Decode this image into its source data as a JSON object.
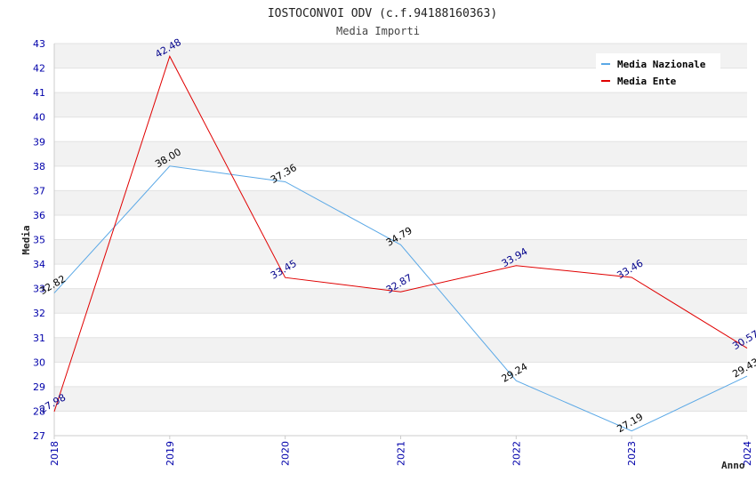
{
  "chart_data": {
    "type": "line",
    "title": "IOSTOCONVOI ODV (c.f.94188160363)",
    "subtitle": "Media Importi",
    "xlabel": "Anno",
    "ylabel": "Media",
    "x": [
      "2018",
      "2019",
      "2020",
      "2021",
      "2022",
      "2023",
      "2024"
    ],
    "ylim": [
      27,
      43
    ],
    "yticks": [
      "27",
      "28",
      "29",
      "30",
      "31",
      "32",
      "33",
      "34",
      "35",
      "36",
      "37",
      "38",
      "39",
      "40",
      "41",
      "42",
      "43"
    ],
    "grid": true,
    "legend_position": "top-right",
    "series": [
      {
        "name": "Media Nazionale",
        "color": "#5aa8e6",
        "label_color": "#000000",
        "values": [
          32.82,
          38.0,
          37.36,
          34.79,
          29.24,
          27.19,
          29.43
        ],
        "labels": [
          "32.82",
          "38.00",
          "37.36",
          "34.79",
          "29.24",
          "27.19",
          "29.43"
        ]
      },
      {
        "name": "Media Ente",
        "color": "#e00000",
        "label_color": "#00008b",
        "values": [
          27.98,
          42.48,
          33.45,
          32.87,
          33.94,
          33.46,
          30.57
        ],
        "labels": [
          "27.98",
          "42.48",
          "33.45",
          "32.87",
          "33.94",
          "33.46",
          "30.57"
        ]
      }
    ]
  }
}
